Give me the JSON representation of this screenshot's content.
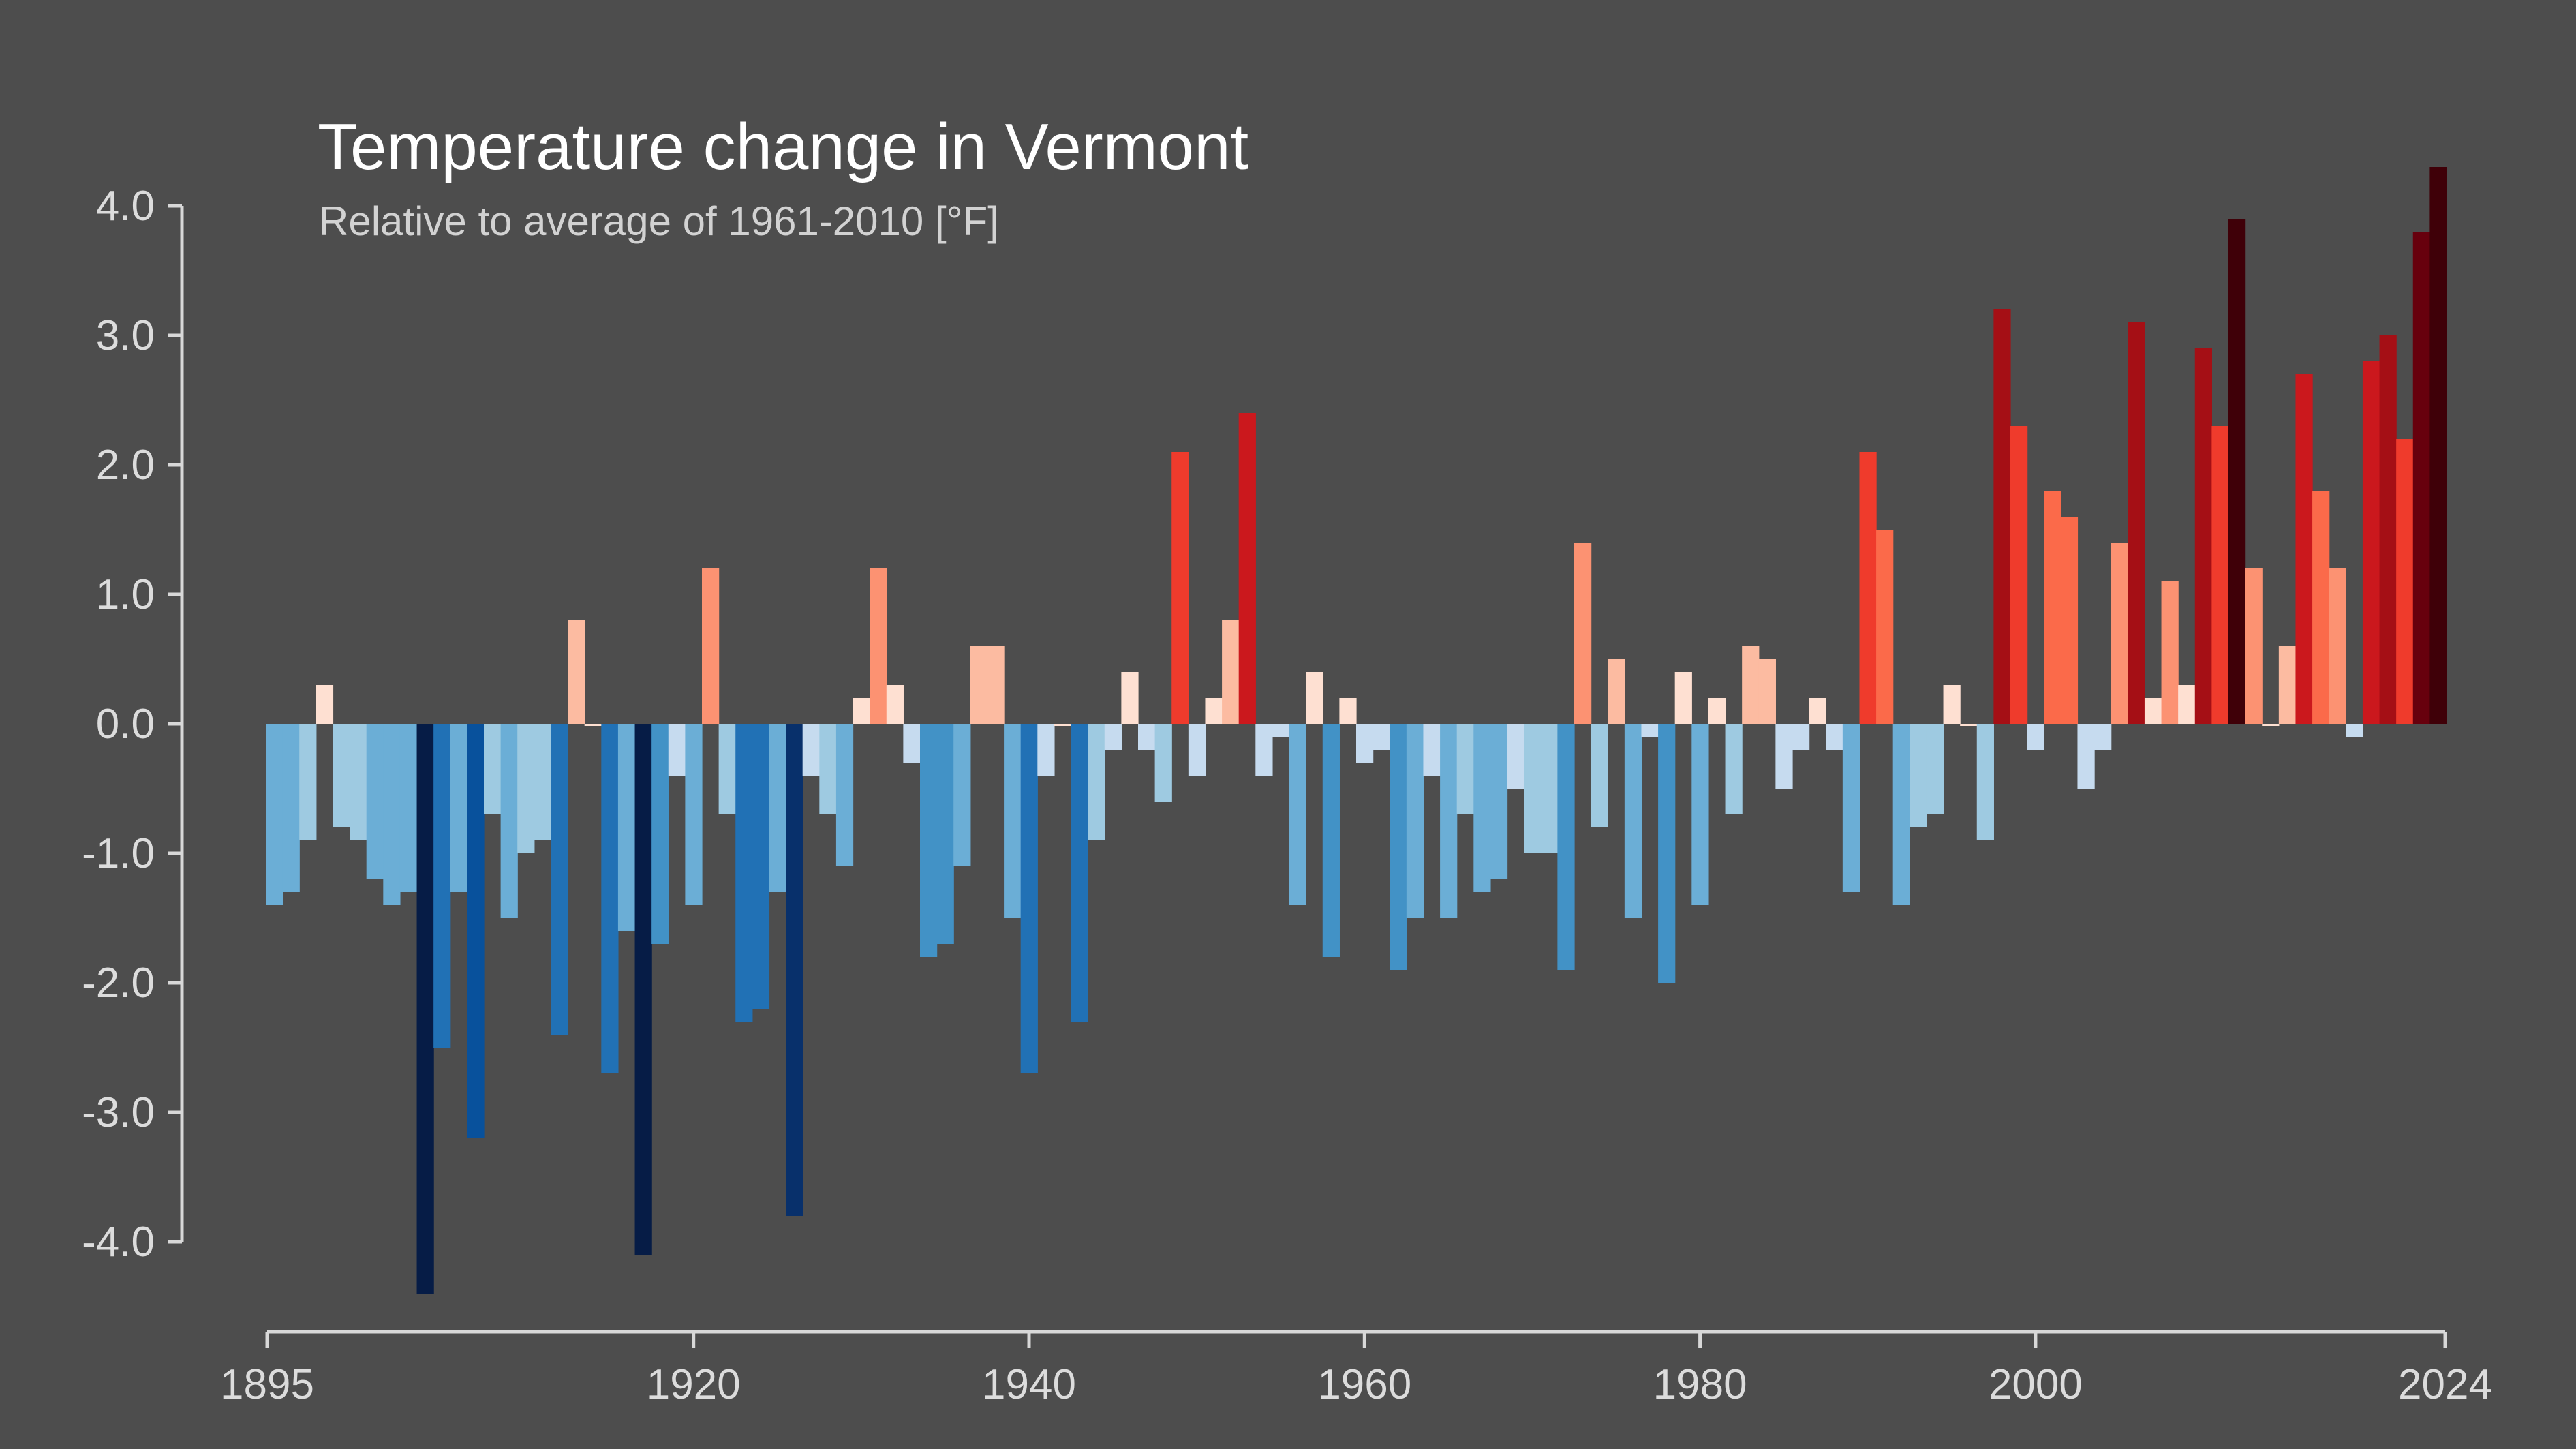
{
  "chart_data": {
    "type": "bar",
    "title": "Temperature change in Vermont",
    "subtitle": "Relative to average of 1961-2010  [°F]",
    "xlabel": "",
    "ylabel": "",
    "ylim": [
      -4.4,
      4.4
    ],
    "xlim": [
      1895,
      2024
    ],
    "y_ticks": [
      "4.0",
      "3.0",
      "2.0",
      "1.0",
      "0.0",
      "-1.0",
      "-2.0",
      "-3.0",
      "-4.0"
    ],
    "x_ticks": [
      "1895",
      "1920",
      "1940",
      "1960",
      "1980",
      "2000",
      "2024"
    ],
    "grid": false,
    "legend": "none",
    "colors": {
      "background": "#4d4d4d",
      "axis": "#d8d8d8",
      "text": "#dcdcdc",
      "title": "#ffffff"
    },
    "x": [
      1895,
      1896,
      1897,
      1898,
      1899,
      1900,
      1901,
      1902,
      1903,
      1904,
      1905,
      1906,
      1907,
      1908,
      1909,
      1910,
      1911,
      1912,
      1913,
      1914,
      1915,
      1916,
      1917,
      1918,
      1919,
      1920,
      1921,
      1922,
      1923,
      1924,
      1925,
      1926,
      1927,
      1928,
      1929,
      1930,
      1931,
      1932,
      1933,
      1934,
      1935,
      1936,
      1937,
      1938,
      1939,
      1940,
      1941,
      1942,
      1943,
      1944,
      1945,
      1946,
      1947,
      1948,
      1949,
      1950,
      1951,
      1952,
      1953,
      1954,
      1955,
      1956,
      1957,
      1958,
      1959,
      1960,
      1961,
      1962,
      1963,
      1964,
      1965,
      1966,
      1967,
      1968,
      1969,
      1970,
      1971,
      1972,
      1973,
      1974,
      1975,
      1976,
      1977,
      1978,
      1979,
      1980,
      1981,
      1982,
      1983,
      1984,
      1985,
      1986,
      1987,
      1988,
      1989,
      1990,
      1991,
      1992,
      1993,
      1994,
      1995,
      1996,
      1997,
      1998,
      1999,
      2000,
      2001,
      2002,
      2003,
      2004,
      2005,
      2006,
      2007,
      2008,
      2009,
      2010,
      2011,
      2012,
      2013,
      2014,
      2015,
      2016,
      2017,
      2018,
      2019,
      2020,
      2021,
      2022,
      2023,
      2024
    ],
    "values": [
      -1.4,
      -1.3,
      -0.9,
      0.3,
      -0.8,
      -0.9,
      -1.2,
      -1.4,
      -1.3,
      -4.4,
      -2.5,
      -1.3,
      -3.2,
      -0.7,
      -1.5,
      -1.0,
      -0.9,
      -2.4,
      0.8,
      0.0,
      -2.7,
      -1.6,
      -4.1,
      -1.7,
      -0.4,
      -1.4,
      1.2,
      -0.7,
      -2.3,
      -2.2,
      -1.3,
      -3.8,
      -0.4,
      -0.7,
      -1.1,
      0.2,
      1.2,
      0.3,
      -0.3,
      -1.8,
      -1.7,
      -1.1,
      0.6,
      0.6,
      -1.5,
      -2.7,
      -0.4,
      0.0,
      -2.3,
      -0.9,
      -0.2,
      0.4,
      -0.2,
      -0.6,
      2.1,
      -0.4,
      0.2,
      0.8,
      2.4,
      -0.4,
      -0.1,
      -1.4,
      0.4,
      -1.8,
      0.2,
      -0.3,
      -0.2,
      -1.9,
      -1.5,
      -0.4,
      -1.5,
      -0.7,
      -1.3,
      -1.2,
      -0.5,
      -1.0,
      -1.0,
      -1.9,
      1.4,
      -0.8,
      0.5,
      -1.5,
      -0.1,
      -2.0,
      0.4,
      -1.4,
      0.2,
      -0.7,
      0.6,
      0.5,
      -0.5,
      -0.2,
      0.2,
      -0.2,
      -1.3,
      2.1,
      1.5,
      -1.4,
      -0.8,
      -0.7,
      0.3,
      0.0,
      -0.9,
      3.2,
      2.3,
      -0.2,
      1.8,
      1.6,
      -0.5,
      -0.2,
      1.4,
      3.1,
      0.2,
      1.1,
      0.3,
      2.9,
      2.3,
      3.9,
      1.2,
      0.0,
      0.6,
      2.7,
      1.8,
      1.2,
      -0.1,
      2.8,
      3.0,
      2.2,
      3.8,
      4.3
    ]
  }
}
